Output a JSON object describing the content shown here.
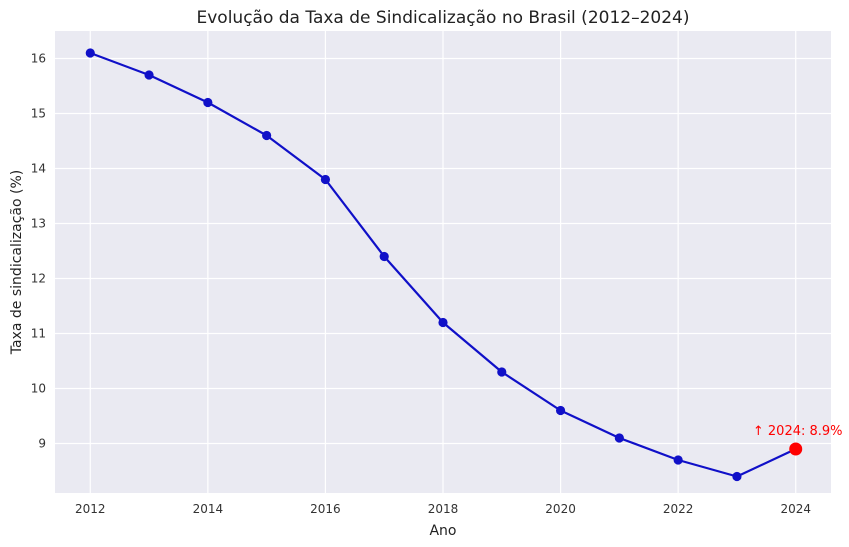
{
  "chart_data": {
    "type": "line",
    "title": "Evolução da Taxa de Sindicalização no Brasil (2012–2024)",
    "xlabel": "Ano",
    "ylabel": "Taxa de sindicalização (%)",
    "xlim": [
      2011.4,
      2024.6
    ],
    "ylim": [
      8.1,
      16.5
    ],
    "x_ticks": [
      2012,
      2014,
      2016,
      2018,
      2020,
      2022,
      2024
    ],
    "y_ticks": [
      9,
      10,
      11,
      12,
      13,
      14,
      15,
      16
    ],
    "grid": true,
    "colors": {
      "line": "#1010c8",
      "highlight": "#ff0000",
      "background": "#eaeaf2",
      "grid": "#ffffff"
    },
    "series": [
      {
        "x": [
          2012,
          2013,
          2014,
          2015,
          2016,
          2017,
          2018,
          2019,
          2020,
          2021,
          2022,
          2023,
          2024
        ],
        "values": [
          16.1,
          15.7,
          15.2,
          14.6,
          13.8,
          12.4,
          11.2,
          10.3,
          9.6,
          9.1,
          8.7,
          8.4,
          8.9
        ]
      }
    ],
    "highlight": {
      "x": 2024,
      "y": 8.9
    },
    "annotation": {
      "text": "↑ 2024: 8.9%",
      "x": 2024,
      "y": 8.9
    }
  }
}
